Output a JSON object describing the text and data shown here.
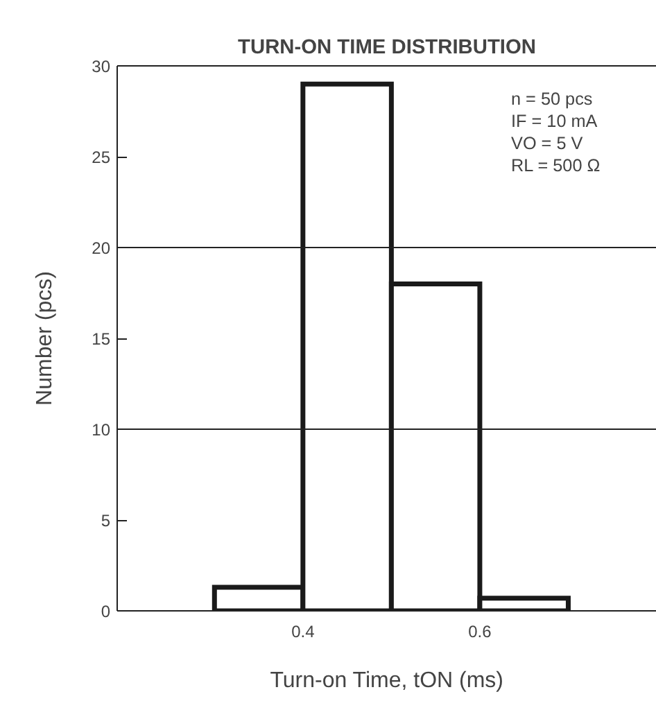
{
  "chart_data": {
    "type": "histogram",
    "title": "TURN-ON TIME DISTRIBUTION",
    "xlabel": "Turn-on Time, tON (ms)",
    "ylabel": "Number (pcs)",
    "bins": [
      0.3,
      0.4,
      0.5,
      0.6,
      0.7
    ],
    "values": [
      1.3,
      29,
      18,
      0.7
    ],
    "color": "#1a1a1a",
    "xlim": [
      0.19,
      0.8
    ],
    "xticks": [
      0.4,
      0.6
    ],
    "ylim": [
      0,
      30
    ],
    "yticks": [
      0,
      5,
      10,
      15,
      20,
      25,
      30
    ],
    "ref_lines": [
      {
        "axis": "y",
        "value": 10
      },
      {
        "axis": "y",
        "value": 20
      }
    ],
    "annotations": [
      "n = 50 pcs",
      "IF = 10 mA",
      "VO = 5 V",
      "RL = 500 Ω"
    ]
  }
}
